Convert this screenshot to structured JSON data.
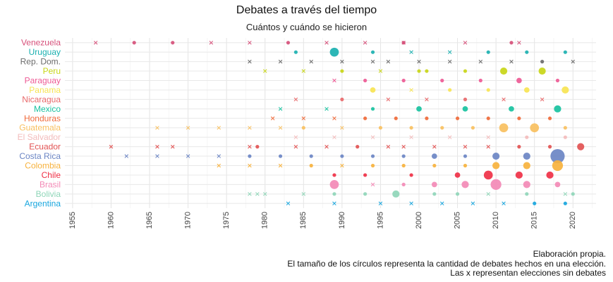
{
  "chart_data": {
    "type": "scatter",
    "title": "Debates a través del tiempo",
    "subtitle": "Cuántos y cuándo se hicieron",
    "caption": [
      "Elaboración propia.",
      "El tamaño de los círculos representa la cantidad de debates hechos en una elección.",
      "Las x representan elecciones sin debates"
    ],
    "xlim": [
      1954,
      2023
    ],
    "x_ticks": [
      1955,
      1960,
      1965,
      1970,
      1975,
      1980,
      1985,
      1990,
      1995,
      2000,
      2005,
      2010,
      2015,
      2020
    ],
    "grid": true,
    "legend": "none",
    "countries": [
      "Venezuela",
      "Uruguay",
      "Rep. Dom.",
      "Peru",
      "Paraguay",
      "Panama",
      "Nicaragua",
      "Mexico",
      "Honduras",
      "Guatemala",
      "El Salvador",
      "Ecuador",
      "Costa Rica",
      "Colombia",
      "Chile",
      "Brasil",
      "Bolivia",
      "Argentina"
    ],
    "series": [
      {
        "name": "Venezuela",
        "color": "#d6507a",
        "no_debate": [
          1958,
          1973,
          1978,
          1988,
          1993,
          1998,
          2006,
          2013
        ],
        "debates": [
          [
            1963,
            1
          ],
          [
            1968,
            1
          ],
          [
            1983,
            1
          ],
          [
            1998,
            1
          ],
          [
            2012,
            1
          ]
        ]
      },
      {
        "name": "Uruguay",
        "color": "#1ab0b0",
        "no_debate": [
          1999,
          2004
        ],
        "debates": [
          [
            1984,
            1
          ],
          [
            1989,
            4
          ],
          [
            1994,
            1
          ],
          [
            2009,
            1
          ],
          [
            2014,
            1
          ],
          [
            2019,
            1
          ]
        ]
      },
      {
        "name": "Rep. Dom.",
        "color": "#6b6b6b",
        "no_debate": [
          1978,
          1982,
          1986,
          1990,
          1994,
          1996,
          2000,
          2004,
          2008,
          2012,
          2020
        ],
        "debates": [
          [
            2016,
            1
          ]
        ]
      },
      {
        "name": "Peru",
        "color": "#c8d617",
        "no_debate": [
          1980,
          1985,
          1995
        ],
        "debates": [
          [
            1990,
            1
          ],
          [
            2000,
            1
          ],
          [
            2001,
            1
          ],
          [
            2006,
            1
          ],
          [
            2011,
            3
          ],
          [
            2016,
            3
          ]
        ]
      },
      {
        "name": "Paraguay",
        "color": "#ee5a95",
        "no_debate": [
          1989
        ],
        "debates": [
          [
            1993,
            1
          ],
          [
            1998,
            1
          ],
          [
            2003,
            1
          ],
          [
            2008,
            1
          ],
          [
            2013,
            2
          ],
          [
            2018,
            1
          ]
        ]
      },
      {
        "name": "Panama",
        "color": "#f7e452",
        "no_debate": [
          1999
        ],
        "debates": [
          [
            1994,
            2
          ],
          [
            2004,
            1
          ],
          [
            2009,
            1
          ],
          [
            2014,
            2
          ],
          [
            2019,
            3
          ]
        ]
      },
      {
        "name": "Nicaragua",
        "color": "#e8686a",
        "no_debate": [
          1984,
          1996,
          2001,
          2011,
          2016
        ],
        "debates": [
          [
            1990,
            1
          ],
          [
            2006,
            1
          ]
        ]
      },
      {
        "name": "Mexico",
        "color": "#18c2a0",
        "no_debate": [
          1982,
          1988
        ],
        "debates": [
          [
            1994,
            1
          ],
          [
            2000,
            2
          ],
          [
            2006,
            2
          ],
          [
            2012,
            2
          ],
          [
            2018,
            3
          ]
        ]
      },
      {
        "name": "Honduras",
        "color": "#f06a3a",
        "no_debate": [
          1981,
          1985,
          1989
        ],
        "debates": [
          [
            1993,
            1
          ],
          [
            1997,
            1
          ],
          [
            2001,
            1
          ],
          [
            2005,
            1
          ],
          [
            2009,
            1
          ],
          [
            2013,
            1
          ],
          [
            2017,
            1
          ]
        ]
      },
      {
        "name": "Guatemala",
        "color": "#f8c060",
        "no_debate": [
          1966,
          1970,
          1974,
          1978,
          1982,
          1990
        ],
        "debates": [
          [
            1985,
            1
          ],
          [
            1995,
            1
          ],
          [
            1999,
            1
          ],
          [
            2003,
            1
          ],
          [
            2007,
            1
          ],
          [
            2011,
            4
          ],
          [
            2015,
            4
          ],
          [
            2019,
            1
          ]
        ]
      },
      {
        "name": "El Salvador",
        "color": "#f3bcbc",
        "no_debate": [
          1984,
          1989,
          1994,
          1999,
          2004,
          2009
        ],
        "debates": [
          [
            2014,
            1
          ],
          [
            2019,
            1
          ]
        ]
      },
      {
        "name": "Ecuador",
        "color": "#e25252",
        "no_debate": [
          1960,
          1966,
          1968,
          1978,
          1984,
          1988,
          1996,
          1998,
          2002,
          2006,
          2009
        ],
        "debates": [
          [
            1979,
            1
          ],
          [
            1992,
            1
          ],
          [
            2013,
            1
          ],
          [
            2017,
            1
          ],
          [
            2021,
            3
          ]
        ]
      },
      {
        "name": "Costa Rica",
        "color": "#6b85c4",
        "no_debate": [
          1962,
          1966,
          1970,
          1974
        ],
        "debates": [
          [
            1978,
            1
          ],
          [
            1982,
            1
          ],
          [
            1986,
            1
          ],
          [
            1990,
            1
          ],
          [
            1994,
            1
          ],
          [
            1998,
            1
          ],
          [
            2002,
            2
          ],
          [
            2006,
            1
          ],
          [
            2010,
            3
          ],
          [
            2014,
            3
          ],
          [
            2018,
            7
          ]
        ]
      },
      {
        "name": "Colombia",
        "color": "#f7b23d",
        "no_debate": [
          1974,
          1978,
          1982,
          1990
        ],
        "debates": [
          [
            1986,
            1
          ],
          [
            1994,
            1
          ],
          [
            1998,
            1
          ],
          [
            2002,
            1
          ],
          [
            2006,
            1
          ],
          [
            2010,
            3
          ],
          [
            2014,
            3
          ],
          [
            2018,
            5
          ]
        ]
      },
      {
        "name": "Chile",
        "color": "#ef3046",
        "no_debate": [],
        "debates": [
          [
            1989,
            1
          ],
          [
            1993,
            1
          ],
          [
            1999,
            1
          ],
          [
            2005,
            2
          ],
          [
            2009,
            4
          ],
          [
            2013,
            3
          ],
          [
            2017,
            3
          ]
        ]
      },
      {
        "name": "Brasil",
        "color": "#f38ab6",
        "no_debate": [
          1994
        ],
        "debates": [
          [
            1989,
            4
          ],
          [
            1998,
            1
          ],
          [
            2002,
            2
          ],
          [
            2006,
            3
          ],
          [
            2010,
            5
          ],
          [
            2014,
            3
          ],
          [
            2018,
            2
          ]
        ]
      },
      {
        "name": "Bolivia",
        "color": "#8fd6b8",
        "no_debate": [
          1978,
          1979,
          1980,
          1985,
          2009,
          2019
        ],
        "debates": [
          [
            1989,
            1
          ],
          [
            1993,
            1
          ],
          [
            1997,
            3
          ],
          [
            2002,
            1
          ],
          [
            2005,
            1
          ],
          [
            2014,
            1
          ],
          [
            2020,
            1
          ]
        ]
      },
      {
        "name": "Argentina",
        "color": "#18a6de",
        "no_debate": [
          1983,
          1989,
          1995,
          1999,
          2003,
          2007,
          2011
        ],
        "debates": [
          [
            2015,
            1
          ],
          [
            2019,
            1
          ]
        ]
      }
    ]
  }
}
